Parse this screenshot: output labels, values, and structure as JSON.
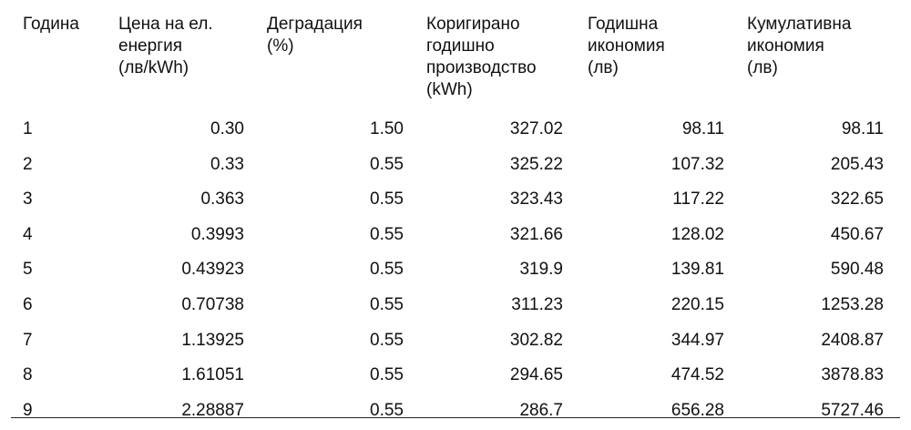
{
  "table": {
    "header": [
      [
        "Година"
      ],
      [
        "Цена на ел.",
        "енергия",
        "(лв/kWh)"
      ],
      [
        "Деградация",
        "(%)"
      ],
      [
        "Коригирано",
        "годишно",
        "производство",
        "(kWh)"
      ],
      [
        "Годишна",
        "икономия",
        "(лв)"
      ],
      [
        "Кумулативна",
        "икономия",
        "(лв)"
      ]
    ],
    "rows": [
      [
        "1",
        "0.30",
        "1.50",
        "327.02",
        "98.11",
        "98.11"
      ],
      [
        "2",
        "0.33",
        "0.55",
        "325.22",
        "107.32",
        "205.43"
      ],
      [
        "3",
        "0.363",
        "0.55",
        "323.43",
        "117.22",
        "322.65"
      ],
      [
        "4",
        "0.3993",
        "0.55",
        "321.66",
        "128.02",
        "450.67"
      ],
      [
        "5",
        "0.43923",
        "0.55",
        "319.9",
        "139.81",
        "590.48"
      ],
      [
        "6",
        "0.70738",
        "0.55",
        "311.23",
        "220.15",
        "1253.28"
      ],
      [
        "7",
        "1.13925",
        "0.55",
        "302.82",
        "344.97",
        "2408.87"
      ],
      [
        "8",
        "1.61051",
        "0.55",
        "294.65",
        "474.52",
        "3878.83"
      ],
      [
        "9",
        "2.28887",
        "0.55",
        "286.7",
        "656.28",
        "5727.46"
      ]
    ]
  }
}
